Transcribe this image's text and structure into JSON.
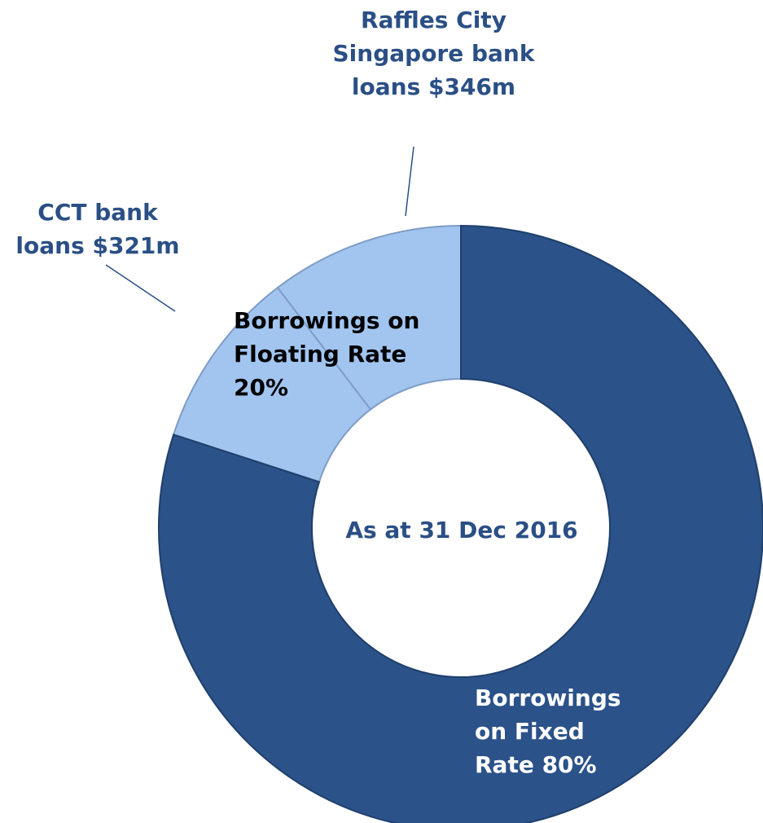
{
  "chart_data": {
    "type": "donut",
    "annotation": "As at 31 Dec 2016",
    "segments": [
      {
        "name": "Borrowings on Fixed Rate 80%",
        "value": 80,
        "color": "#2b5289"
      },
      {
        "name": "Borrowings on Floating Rate 20%",
        "value": 20,
        "color": "#a2c5f0",
        "parts": [
          {
            "name": "CCT bank loans $321m",
            "value": 321
          },
          {
            "name": "Raffles City Singapore bank loans $346m",
            "value": 346
          }
        ]
      }
    ]
  }
}
